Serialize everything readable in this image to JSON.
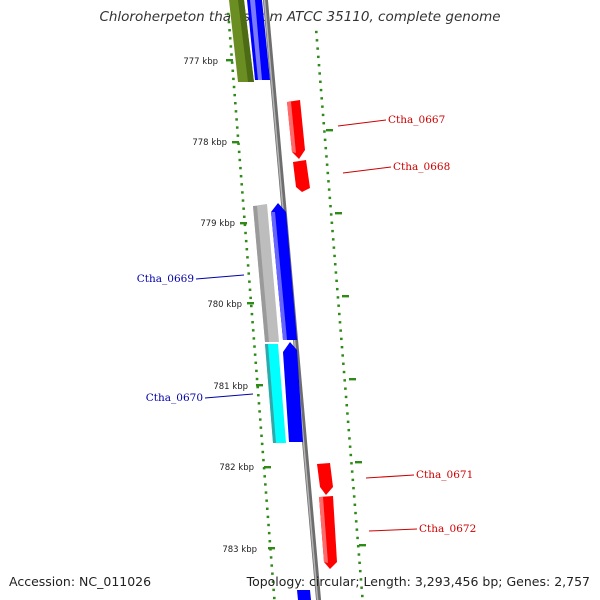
{
  "title": "Chloroherpeton thalassium ATCC 35110, complete genome",
  "footer": {
    "accession_label": "Accession:",
    "accession": "NC_011026",
    "topology_label": "Topology:",
    "topology": "circular;",
    "length_label": "Length:",
    "length": "3,293,456 bp;",
    "genes_label": "Genes:",
    "genes": "2,757"
  },
  "colors": {
    "forward_strand": "#ff0000",
    "reverse_strand": "#0000ff",
    "backbone": "#888888",
    "tick": "#2e8b17",
    "olive": "#6b8e23",
    "gray": "#bdbdbd",
    "cyan": "#00ffff",
    "forward_label": "#cc0000",
    "reverse_label": "#0000aa"
  },
  "ruler": [
    "777 kbp",
    "778 kbp",
    "779 kbp",
    "780 kbp",
    "781 kbp",
    "782 kbp",
    "783 kbp"
  ],
  "gene_labels": [
    {
      "text": "Ctha_0667",
      "strand": "forward"
    },
    {
      "text": "Ctha_0668",
      "strand": "forward"
    },
    {
      "text": "Ctha_0669",
      "strand": "reverse"
    },
    {
      "text": "Ctha_0670",
      "strand": "reverse"
    },
    {
      "text": "Ctha_0671",
      "strand": "forward"
    },
    {
      "text": "Ctha_0672",
      "strand": "forward"
    }
  ]
}
